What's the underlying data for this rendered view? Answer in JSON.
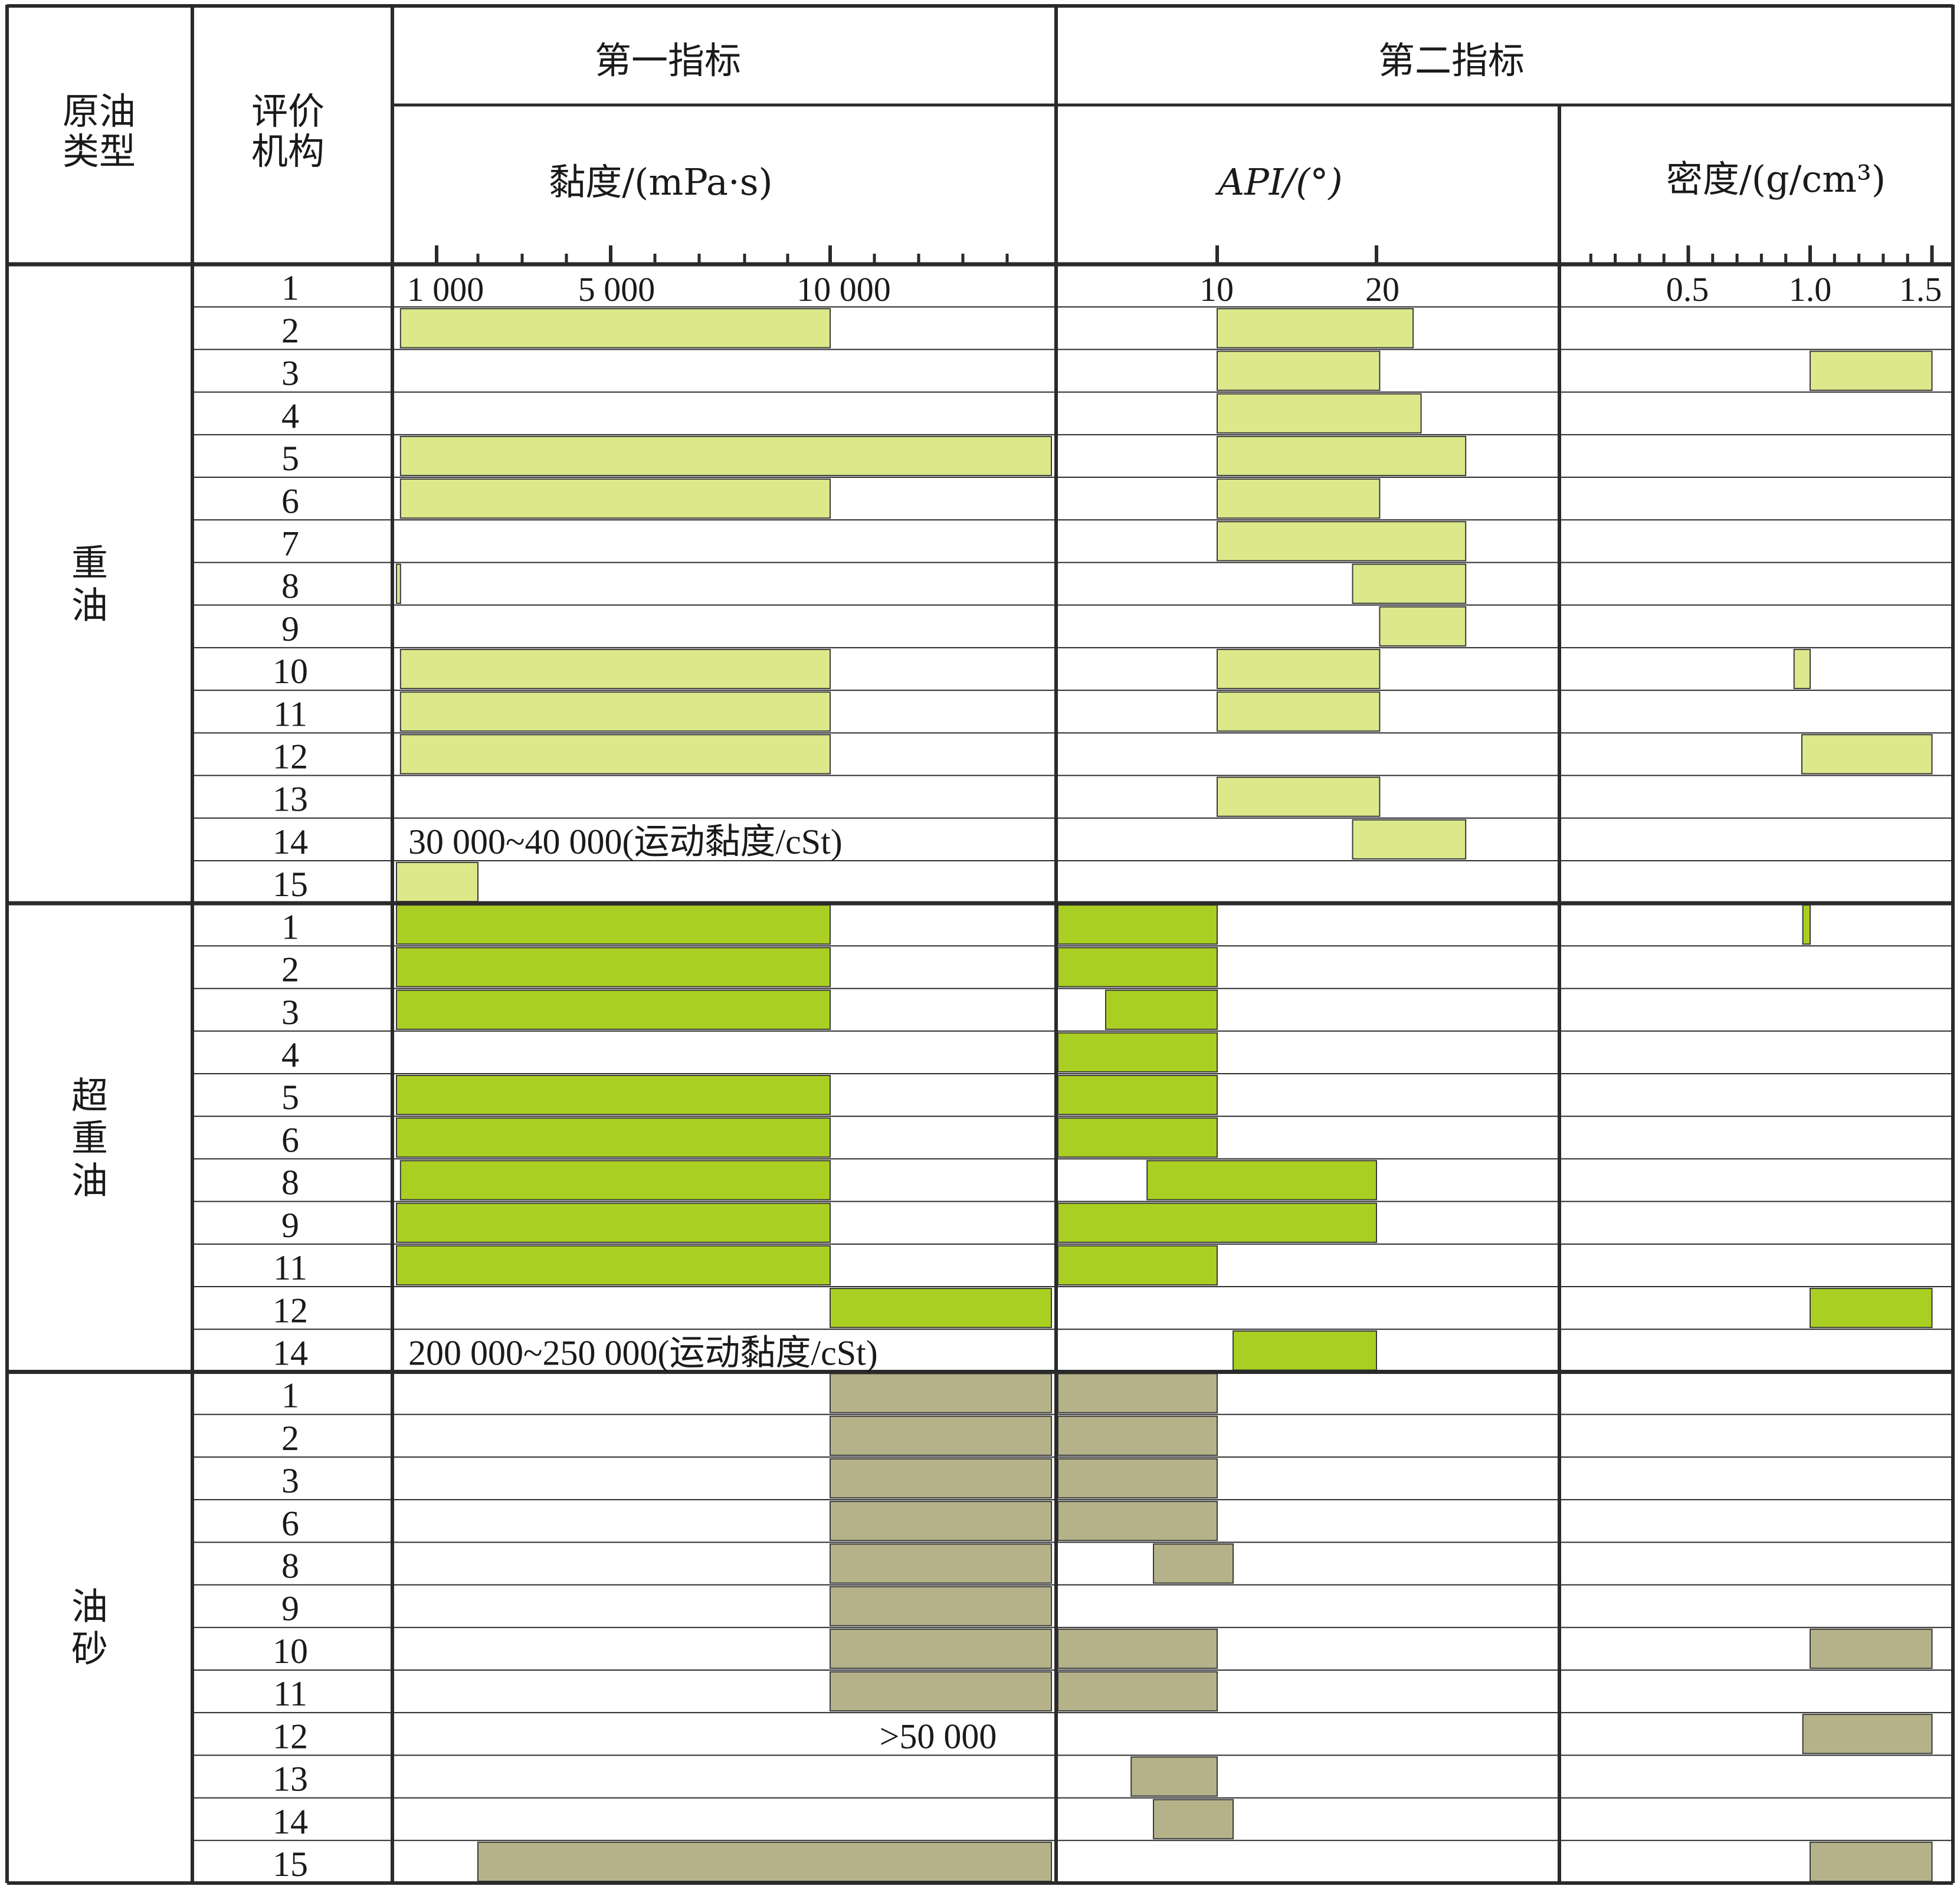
{
  "headers": {
    "crude_type": [
      "原油",
      "类型"
    ],
    "agency": [
      "评价",
      "机构"
    ],
    "first_index": "第一指标",
    "second_index": "第二指标",
    "viscosity": "黏度/(mPa·s)",
    "api": "API/(°)",
    "density": "密度/(g/cm³)"
  },
  "axes": {
    "viscosity": {
      "ticks": [
        "1 000",
        "5 000",
        "10 000"
      ]
    },
    "api": {
      "ticks": [
        "10",
        "20"
      ]
    },
    "density": {
      "ticks": [
        "0.5",
        "1.0",
        "1.5"
      ]
    }
  },
  "colors": {
    "heavy": "#dce88a",
    "extra_heavy": "#a9cf22",
    "oil_sand": "#b5b28a",
    "line": "#2a2a2a"
  },
  "chart_data": {
    "type": "bar",
    "groups": [
      {
        "name": "重油",
        "color_key": "heavy",
        "rows": [
          {
            "agency": "1"
          },
          {
            "agency": "2",
            "viscosity": [
              100,
              10000
            ],
            "api": [
              10,
              22.3
            ]
          },
          {
            "agency": "3",
            "api": [
              10,
              20.2
            ],
            "density": [
              1.0,
              1.5
            ]
          },
          {
            "agency": "4",
            "api": [
              10,
              22.8
            ]
          },
          {
            "agency": "5",
            "viscosity": [
              100,
              15000
            ],
            "api": [
              10,
              25.6
            ]
          },
          {
            "agency": "6",
            "viscosity": [
              100,
              10000
            ],
            "api": [
              10,
              20.2
            ]
          },
          {
            "agency": "7",
            "api": [
              10,
              25.6
            ]
          },
          {
            "agency": "8",
            "viscosity": [
              0,
              100
            ],
            "api": [
              18.5,
              25.6
            ]
          },
          {
            "agency": "9",
            "api": [
              20.2,
              25.6
            ]
          },
          {
            "agency": "10",
            "viscosity": [
              100,
              10000
            ],
            "api": [
              10,
              20.2
            ],
            "density": [
              0.934,
              1.0
            ]
          },
          {
            "agency": "11",
            "viscosity": [
              100,
              10000
            ],
            "api": [
              10,
              20.2
            ]
          },
          {
            "agency": "12",
            "viscosity": [
              100,
              10000
            ],
            "density": [
              0.966,
              1.5
            ]
          },
          {
            "agency": "13",
            "api": [
              10,
              20.2
            ]
          },
          {
            "agency": "14",
            "api": [
              18.5,
              25.6
            ],
            "note": "30 000~40 000(运动黏度/cSt)"
          },
          {
            "agency": "15",
            "viscosity": [
              0,
              2000
            ]
          }
        ]
      },
      {
        "name": "超重油",
        "color_key": "extra_heavy",
        "rows": [
          {
            "agency": "1",
            "viscosity": [
              0,
              10000
            ],
            "api": [
              0,
              10
            ],
            "density": [
              0.97,
              1.0
            ]
          },
          {
            "agency": "2",
            "viscosity": [
              0,
              10000
            ],
            "api": [
              0,
              10
            ]
          },
          {
            "agency": "3",
            "viscosity": [
              0,
              10000
            ],
            "api": [
              3,
              10
            ]
          },
          {
            "agency": "4",
            "api": [
              0,
              10
            ]
          },
          {
            "agency": "5",
            "viscosity": [
              0,
              10000
            ],
            "api": [
              0,
              10
            ]
          },
          {
            "agency": "6",
            "viscosity": [
              0,
              10000
            ],
            "api": [
              0,
              10
            ]
          },
          {
            "agency": "8",
            "viscosity": [
              100,
              10000
            ],
            "api": [
              5.6,
              20
            ]
          },
          {
            "agency": "9",
            "viscosity": [
              0,
              10000
            ],
            "api": [
              0,
              20
            ]
          },
          {
            "agency": "11",
            "viscosity": [
              0,
              10000
            ],
            "api": [
              0,
              10
            ]
          },
          {
            "agency": "12",
            "viscosity": [
              10000,
              15000
            ],
            "density": [
              1.0,
              1.5
            ]
          },
          {
            "agency": "14",
            "api": [
              11,
              20
            ],
            "note": "200  000~250 000(运动黏度/cSt)"
          }
        ]
      },
      {
        "name": "油砂",
        "color_key": "oil_sand",
        "rows": [
          {
            "agency": "1",
            "viscosity": [
              10000,
              15000
            ],
            "api": [
              0,
              10
            ]
          },
          {
            "agency": "2",
            "viscosity": [
              10000,
              15000
            ],
            "api": [
              0,
              10
            ]
          },
          {
            "agency": "3",
            "viscosity": [
              10000,
              15000
            ],
            "api": [
              0,
              10
            ]
          },
          {
            "agency": "6",
            "viscosity": [
              10000,
              15000
            ],
            "api": [
              0,
              10
            ]
          },
          {
            "agency": "8",
            "viscosity": [
              10000,
              15000
            ],
            "api": [
              6,
              11
            ]
          },
          {
            "agency": "9",
            "viscosity": [
              10000,
              15000
            ]
          },
          {
            "agency": "10",
            "viscosity": [
              10000,
              15000
            ],
            "api": [
              0,
              10
            ],
            "density": [
              1.0,
              1.5
            ]
          },
          {
            "agency": "11",
            "viscosity": [
              10000,
              15000
            ],
            "api": [
              0,
              10
            ]
          },
          {
            "agency": "12",
            "density": [
              0.97,
              1.5
            ],
            "note": ">50 000"
          },
          {
            "agency": "13",
            "api": [
              4.6,
              10
            ]
          },
          {
            "agency": "14",
            "api": [
              6,
              11
            ]
          },
          {
            "agency": "15",
            "viscosity": [
              2000,
              15000
            ],
            "density": [
              1.0,
              1.5
            ]
          }
        ]
      }
    ]
  }
}
